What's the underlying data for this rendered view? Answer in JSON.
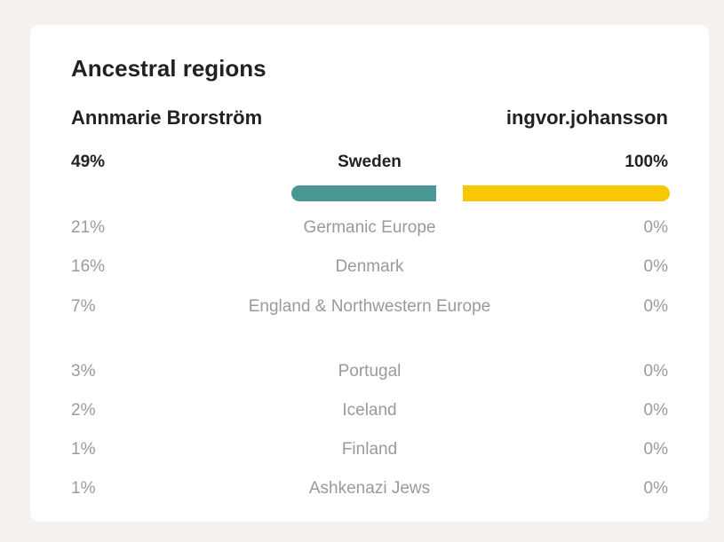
{
  "card": {
    "title": "Ancestral regions",
    "person_left": "Annmarie Brorström",
    "person_right": "ingvor.johansson"
  },
  "top_region": {
    "name": "Sweden",
    "left_pct": "49%",
    "right_pct": "100%",
    "left_fraction": 0.49,
    "right_fraction": 1.0,
    "left_color": "#4a9896",
    "right_color": "#f7c800"
  },
  "regions": [
    {
      "name": "Germanic Europe",
      "left": "21%",
      "right": "0%"
    },
    {
      "name": "Denmark",
      "left": "16%",
      "right": "0%"
    },
    {
      "name": "England & Northwestern Europe",
      "left": "7%",
      "right": "0%"
    },
    {
      "name": "Portugal",
      "left": "3%",
      "right": "0%"
    },
    {
      "name": "Iceland",
      "left": "2%",
      "right": "0%"
    },
    {
      "name": "Finland",
      "left": "1%",
      "right": "0%"
    },
    {
      "name": "Ashkenazi Jews",
      "left": "1%",
      "right": "0%"
    }
  ]
}
